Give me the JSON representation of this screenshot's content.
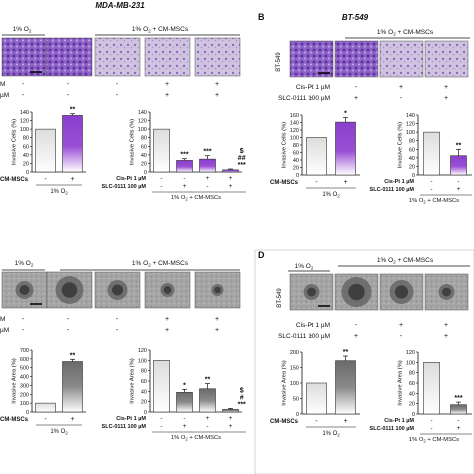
{
  "colors": {
    "purple": "#9b4fd6",
    "purple_dark": "#7a35b8",
    "gray_bar": "#7d7d7d",
    "gray_dark": "#5a5a5a",
    "invasion_stain": "#7a4fb5",
    "sphere_bg": "#a9a9a9"
  },
  "panels": {
    "A": {
      "cell_line": "MDA-MB-231"
    },
    "B": {
      "letter": "B",
      "cell_line": "BT-549"
    },
    "C": {},
    "D": {
      "letter": "D",
      "cell_line": "BT-549"
    }
  },
  "header_labels": {
    "normoxia": "1% O",
    "o2_sub": "2",
    "hypoxia_cm": "1% O",
    "cm_suffix": " + CM-MSCs"
  },
  "row_labels": {
    "cm_mscs": "CM-MSCs",
    "cis_pt": "Cis-Pt 1 µM",
    "slc": "SLC-0111 100 µM",
    "cis_trunc": "M",
    "slc_trunc": "µM",
    "cis_trunc_b": "Cis-Pt 1 µM",
    "slc_trunc_b": "SLC-0111 100 µM"
  },
  "signs": {
    "cis": [
      "-",
      "-",
      "+",
      "+"
    ],
    "slc": [
      "-",
      "+",
      "-",
      "+"
    ],
    "cm": [
      "-",
      "+"
    ]
  },
  "y_labels": {
    "invasive_cells": "Invasive Cells (%)",
    "invasive_area": "Invasive Area (%)"
  },
  "x_group_labels": {
    "normoxia": "1% O",
    "hypoxia_cm": "1% O",
    "cm_suffix": " + CM-MSCs"
  },
  "charts": [
    {
      "id": "A-left",
      "type": "bar",
      "panel": "A",
      "ylim": [
        0,
        140
      ],
      "ticks": [
        0,
        20,
        40,
        60,
        80,
        100,
        120,
        140
      ],
      "values": [
        100,
        132
      ],
      "errors": [
        0,
        4
      ],
      "sig": [
        "",
        "**"
      ],
      "style": "purple"
    },
    {
      "id": "A-right",
      "type": "bar",
      "panel": "A",
      "ylim": [
        0,
        140
      ],
      "ticks": [
        0,
        20,
        40,
        60,
        80,
        100,
        120,
        140
      ],
      "values": [
        100,
        27,
        30,
        5
      ],
      "errors": [
        0,
        4,
        8,
        2
      ],
      "sig": [
        "",
        "***",
        "***",
        "$\n##\n***"
      ],
      "style": "purple"
    },
    {
      "id": "B-left",
      "type": "bar",
      "panel": "B",
      "ylim": [
        0,
        160
      ],
      "ticks": [
        0,
        20,
        40,
        60,
        80,
        100,
        120,
        140,
        160
      ],
      "values": [
        100,
        141
      ],
      "errors": [
        0,
        12
      ],
      "sig": [
        "",
        "*"
      ],
      "style": "purple"
    },
    {
      "id": "B-right",
      "type": "bar",
      "panel": "B",
      "ylim": [
        0,
        140
      ],
      "ticks": [
        0,
        20,
        40,
        60,
        80,
        100,
        120,
        140
      ],
      "values": [
        100,
        45
      ],
      "errors": [
        0,
        15
      ],
      "sig": [
        "",
        "**"
      ],
      "style": "purple"
    },
    {
      "id": "C-left",
      "type": "bar",
      "panel": "C",
      "ylim": [
        0,
        700
      ],
      "ticks": [
        0,
        100,
        200,
        300,
        400,
        500,
        600,
        700
      ],
      "values": [
        100,
        570
      ],
      "errors": [
        0,
        25
      ],
      "sig": [
        "",
        "**"
      ],
      "style": "gray"
    },
    {
      "id": "C-right",
      "type": "bar",
      "panel": "C",
      "ylim": [
        0,
        120
      ],
      "ticks": [
        0,
        20,
        40,
        60,
        80,
        100,
        120
      ],
      "values": [
        100,
        38,
        45,
        5
      ],
      "errors": [
        0,
        6,
        10,
        2
      ],
      "sig": [
        "",
        "*",
        "**",
        "$\n#\n***"
      ],
      "style": "gray"
    },
    {
      "id": "D-left",
      "type": "bar",
      "panel": "D",
      "ylim": [
        0,
        200
      ],
      "ticks": [
        0,
        50,
        100,
        150,
        200
      ],
      "values": [
        100,
        172
      ],
      "errors": [
        0,
        15
      ],
      "sig": [
        "",
        "**"
      ],
      "style": "gray"
    },
    {
      "id": "D-right",
      "type": "bar",
      "panel": "D",
      "ylim": [
        0,
        120
      ],
      "ticks": [
        0,
        20,
        40,
        60,
        80,
        100,
        120
      ],
      "values": [
        100,
        18
      ],
      "errors": [
        0,
        5
      ],
      "sig": [
        "",
        "***"
      ],
      "style": "gray"
    }
  ]
}
